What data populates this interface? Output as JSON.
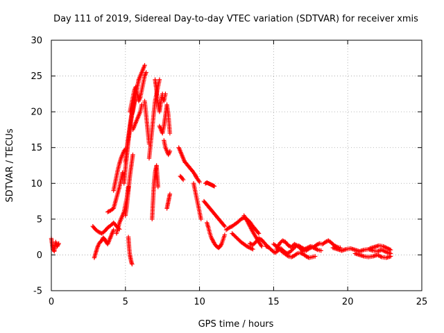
{
  "chart_data": {
    "type": "scatter",
    "title": "Day 111 of 2019, Sidereal Day-to-day VTEC variation (SDTVAR) for receiver xmis",
    "xlabel": "GPS time / hours",
    "ylabel": "SDTVAR / TECUs",
    "xlim": [
      0,
      25
    ],
    "ylim": [
      -5,
      30
    ],
    "x_ticks": [
      "0",
      "5",
      "10",
      "15",
      "20",
      "25"
    ],
    "y_ticks": [
      "-5",
      "0",
      "5",
      "10",
      "15",
      "20",
      "25",
      "30"
    ],
    "grid": true,
    "marker": "plus",
    "color": "#ff0000",
    "tracks": [
      {
        "x": [
          0.0,
          0.1,
          0.2,
          0.3,
          0.4,
          0.5
        ],
        "y": [
          2.3,
          0.8,
          0.5,
          1.8,
          1.2,
          1.6
        ]
      },
      {
        "x": [
          2.9,
          3.0,
          3.1,
          3.2,
          3.3,
          3.4,
          3.5,
          3.6,
          3.7,
          3.8,
          3.9,
          4.0,
          4.1,
          4.2
        ],
        "y": [
          -0.4,
          0.3,
          1.0,
          1.5,
          1.8,
          2.0,
          2.4,
          2.2,
          1.8,
          1.5,
          2.0,
          2.5,
          3.0,
          3.5
        ]
      },
      {
        "x": [
          2.8,
          3.0,
          3.2,
          3.4,
          3.6,
          3.8,
          4.0,
          4.2,
          4.4,
          4.6
        ],
        "y": [
          4.0,
          3.5,
          3.2,
          3.0,
          3.3,
          3.8,
          4.1,
          4.5,
          4.0,
          3.6
        ]
      },
      {
        "x": [
          3.8,
          4.0,
          4.2,
          4.4,
          4.6,
          4.7,
          4.8
        ],
        "y": [
          6.0,
          6.2,
          6.5,
          8.0,
          9.5,
          10.5,
          11.5
        ]
      },
      {
        "x": [
          4.2,
          4.3,
          4.4,
          4.5,
          4.6,
          4.7,
          4.8,
          4.9,
          5.0
        ],
        "y": [
          9.0,
          10.0,
          11.0,
          12.0,
          12.8,
          13.5,
          14.0,
          14.5,
          14.8
        ]
      },
      {
        "x": [
          4.4,
          4.5,
          4.6,
          4.7,
          4.8,
          4.9,
          5.0,
          5.1,
          5.2
        ],
        "y": [
          3.0,
          3.8,
          4.5,
          5.0,
          5.5,
          6.0,
          7.0,
          8.0,
          9.5
        ]
      },
      {
        "x": [
          4.9,
          5.0,
          5.1,
          5.2,
          5.3,
          5.4,
          5.5,
          5.6,
          5.7,
          5.8,
          5.9
        ],
        "y": [
          10.0,
          12.0,
          14.0,
          16.0,
          17.5,
          19.0,
          20.5,
          21.5,
          22.5,
          23.5,
          24.5
        ]
      },
      {
        "x": [
          5.0,
          5.1,
          5.2,
          5.3,
          5.4,
          5.5,
          5.6,
          5.7,
          5.8,
          5.9,
          6.0,
          6.1,
          6.2,
          6.3
        ],
        "y": [
          13.0,
          15.0,
          16.5,
          18.0,
          19.5,
          20.0,
          21.0,
          22.5,
          23.5,
          24.5,
          25.0,
          25.5,
          26.0,
          26.5
        ]
      },
      {
        "x": [
          5.3,
          5.4,
          5.5,
          5.6,
          5.7,
          5.8,
          5.9,
          6.0,
          6.1,
          6.2,
          6.3,
          6.4
        ],
        "y": [
          20.0,
          21.0,
          22.0,
          23.0,
          23.5,
          22.5,
          21.5,
          22.0,
          23.0,
          24.0,
          25.0,
          25.5
        ]
      },
      {
        "x": [
          5.5,
          5.6,
          5.7,
          5.8,
          5.9,
          6.0,
          6.1
        ],
        "y": [
          17.5,
          18.0,
          18.5,
          19.0,
          19.5,
          20.0,
          21.0
        ]
      },
      {
        "x": [
          5.0,
          5.1,
          5.2,
          5.3,
          5.4,
          5.5
        ],
        "y": [
          5.5,
          7.0,
          9.0,
          11.0,
          12.5,
          14.0
        ]
      },
      {
        "x": [
          5.2,
          5.25,
          5.3,
          5.35,
          5.4,
          5.45
        ],
        "y": [
          2.5,
          1.0,
          0.0,
          -0.5,
          -1.0,
          -1.3
        ]
      },
      {
        "x": [
          6.3,
          6.35,
          6.4,
          6.45,
          6.5,
          6.55,
          6.6
        ],
        "y": [
          21.5,
          20.5,
          19.5,
          18.5,
          17.5,
          16.5,
          15.5
        ]
      },
      {
        "x": [
          6.6,
          6.7,
          6.8,
          6.9,
          7.0,
          7.1,
          7.2,
          7.3
        ],
        "y": [
          13.5,
          15.5,
          17.5,
          19.5,
          21.5,
          22.5,
          23.5,
          24.5
        ]
      },
      {
        "x": [
          6.8,
          6.85,
          6.9,
          6.95,
          7.0,
          7.05,
          7.1,
          7.15,
          7.2
        ],
        "y": [
          5.0,
          7.0,
          9.0,
          10.5,
          11.5,
          12.0,
          12.5,
          11.0,
          9.5
        ]
      },
      {
        "x": [
          7.0,
          7.1,
          7.2,
          7.3,
          7.4,
          7.5
        ],
        "y": [
          24.5,
          23.0,
          21.0,
          20.0,
          21.5,
          22.5
        ]
      },
      {
        "x": [
          7.3,
          7.4,
          7.5,
          7.6,
          7.7,
          7.8,
          7.9,
          8.0
        ],
        "y": [
          18.0,
          17.5,
          17.0,
          18.0,
          19.5,
          21.0,
          19.5,
          17.0
        ]
      },
      {
        "x": [
          7.6,
          7.7,
          7.8,
          7.9,
          8.0
        ],
        "y": [
          16.0,
          15.0,
          14.5,
          14.0,
          14.5
        ]
      },
      {
        "x": [
          7.8,
          7.85,
          7.9,
          7.95,
          8.0
        ],
        "y": [
          6.5,
          7.0,
          7.5,
          8.0,
          8.5
        ]
      },
      {
        "x": [
          7.5,
          7.6,
          7.7
        ],
        "y": [
          22.0,
          21.5,
          22.5
        ]
      },
      {
        "x": [
          8.6,
          8.7,
          8.8,
          8.9,
          9.0,
          9.1,
          9.2,
          9.3,
          9.4,
          9.5,
          9.6,
          9.7,
          9.8,
          9.9,
          10.0
        ],
        "y": [
          15.0,
          14.5,
          14.0,
          13.5,
          13.0,
          12.8,
          12.5,
          12.3,
          12.0,
          11.8,
          11.5,
          11.2,
          10.8,
          10.5,
          10.2
        ]
      },
      {
        "x": [
          8.7,
          8.8,
          8.9
        ],
        "y": [
          11.0,
          10.8,
          10.5
        ]
      },
      {
        "x": [
          9.6,
          9.7,
          9.8,
          9.9,
          10.0,
          10.1
        ],
        "y": [
          10.0,
          9.0,
          8.0,
          7.0,
          6.0,
          5.0
        ]
      },
      {
        "x": [
          10.4,
          10.5,
          10.6,
          10.7,
          10.8,
          10.9,
          11.0
        ],
        "y": [
          10.0,
          10.1,
          10.0,
          9.9,
          9.8,
          9.7,
          9.6
        ]
      },
      {
        "x": [
          10.3,
          10.5,
          10.7,
          10.9,
          11.1,
          11.3,
          11.5,
          11.7
        ],
        "y": [
          7.5,
          7.0,
          6.5,
          6.0,
          5.5,
          5.0,
          4.5,
          4.0
        ]
      },
      {
        "x": [
          10.5,
          10.6,
          10.7,
          10.8,
          10.9,
          11.0,
          11.1,
          11.2,
          11.3,
          11.4,
          11.5,
          11.6,
          11.7
        ],
        "y": [
          4.5,
          3.8,
          3.0,
          2.4,
          2.0,
          1.6,
          1.3,
          1.1,
          1.0,
          1.2,
          1.6,
          2.2,
          2.8
        ]
      },
      {
        "x": [
          11.8,
          12.0,
          12.2,
          12.4,
          12.6,
          12.8,
          13.0,
          13.2,
          13.4,
          13.6,
          13.8,
          14.0
        ],
        "y": [
          3.5,
          3.8,
          4.0,
          4.3,
          4.6,
          5.0,
          5.2,
          5.0,
          4.6,
          4.0,
          3.5,
          3.0
        ]
      },
      {
        "x": [
          12.2,
          12.4,
          12.6,
          12.8,
          13.0,
          13.2,
          13.4,
          13.6
        ],
        "y": [
          3.0,
          2.6,
          2.2,
          1.8,
          1.5,
          1.2,
          1.0,
          0.8
        ]
      },
      {
        "x": [
          13.0,
          13.2,
          13.4,
          13.6,
          13.8,
          14.0,
          14.2
        ],
        "y": [
          5.5,
          4.8,
          4.0,
          3.2,
          2.5,
          1.8,
          1.2
        ]
      },
      {
        "x": [
          13.4,
          13.6,
          13.8,
          14.0,
          14.2,
          14.4,
          14.6
        ],
        "y": [
          1.6,
          1.4,
          1.8,
          2.3,
          2.1,
          1.6,
          1.2
        ]
      },
      {
        "x": [
          14.5,
          14.7,
          14.9,
          15.1,
          15.3,
          15.5,
          15.7,
          15.9,
          16.1,
          16.3,
          16.5,
          16.7,
          16.9,
          17.1,
          17.3,
          17.5,
          17.7,
          17.9,
          18.1,
          18.3,
          18.5,
          18.7,
          18.9,
          19.1,
          19.3,
          19.5
        ],
        "y": [
          1.2,
          1.0,
          0.6,
          0.3,
          0.6,
          0.9,
          0.5,
          0.2,
          0.4,
          0.8,
          1.2,
          1.3,
          1.0,
          0.8,
          1.0,
          1.2,
          1.1,
          1.4,
          1.6,
          1.5,
          1.8,
          2.0,
          1.7,
          1.3,
          1.1,
          1.0
        ]
      },
      {
        "x": [
          15.0,
          15.2,
          15.4,
          15.6,
          15.8,
          16.0,
          16.2,
          16.4,
          16.6,
          16.8,
          17.0,
          17.2,
          17.4,
          17.6,
          17.8
        ],
        "y": [
          1.5,
          1.2,
          0.8,
          0.4,
          0.1,
          -0.2,
          -0.3,
          -0.1,
          0.2,
          0.3,
          0.1,
          -0.2,
          -0.4,
          -0.3,
          -0.2
        ]
      },
      {
        "x": [
          15.2,
          15.4,
          15.6,
          15.8,
          16.0,
          16.2,
          16.4,
          16.6,
          16.8,
          17.0,
          17.2,
          17.4,
          17.6,
          17.8,
          18.0,
          18.2
        ],
        "y": [
          0.8,
          1.6,
          2.0,
          1.8,
          1.3,
          1.1,
          1.5,
          1.3,
          0.9,
          0.5,
          0.6,
          0.9,
          1.1,
          0.9,
          0.7,
          0.6
        ]
      },
      {
        "x": [
          19.0,
          19.3,
          19.6,
          19.9,
          20.2,
          20.5,
          20.8,
          21.1,
          21.4,
          21.7,
          22.0,
          22.3,
          22.6,
          22.9
        ],
        "y": [
          1.0,
          0.8,
          0.6,
          0.8,
          0.9,
          0.7,
          0.5,
          0.7,
          0.8,
          0.6,
          0.5,
          0.7,
          0.4,
          0.2
        ]
      },
      {
        "x": [
          20.5,
          20.8,
          21.1,
          21.4,
          21.7,
          22.0,
          22.3,
          22.6,
          22.9
        ],
        "y": [
          0.2,
          0.0,
          -0.2,
          -0.3,
          -0.2,
          0.0,
          -0.3,
          -0.4,
          -0.2
        ]
      },
      {
        "x": [
          21.5,
          21.8,
          22.1,
          22.4,
          22.7,
          22.9
        ],
        "y": [
          0.9,
          1.1,
          1.3,
          1.2,
          0.9,
          0.7
        ]
      }
    ]
  }
}
